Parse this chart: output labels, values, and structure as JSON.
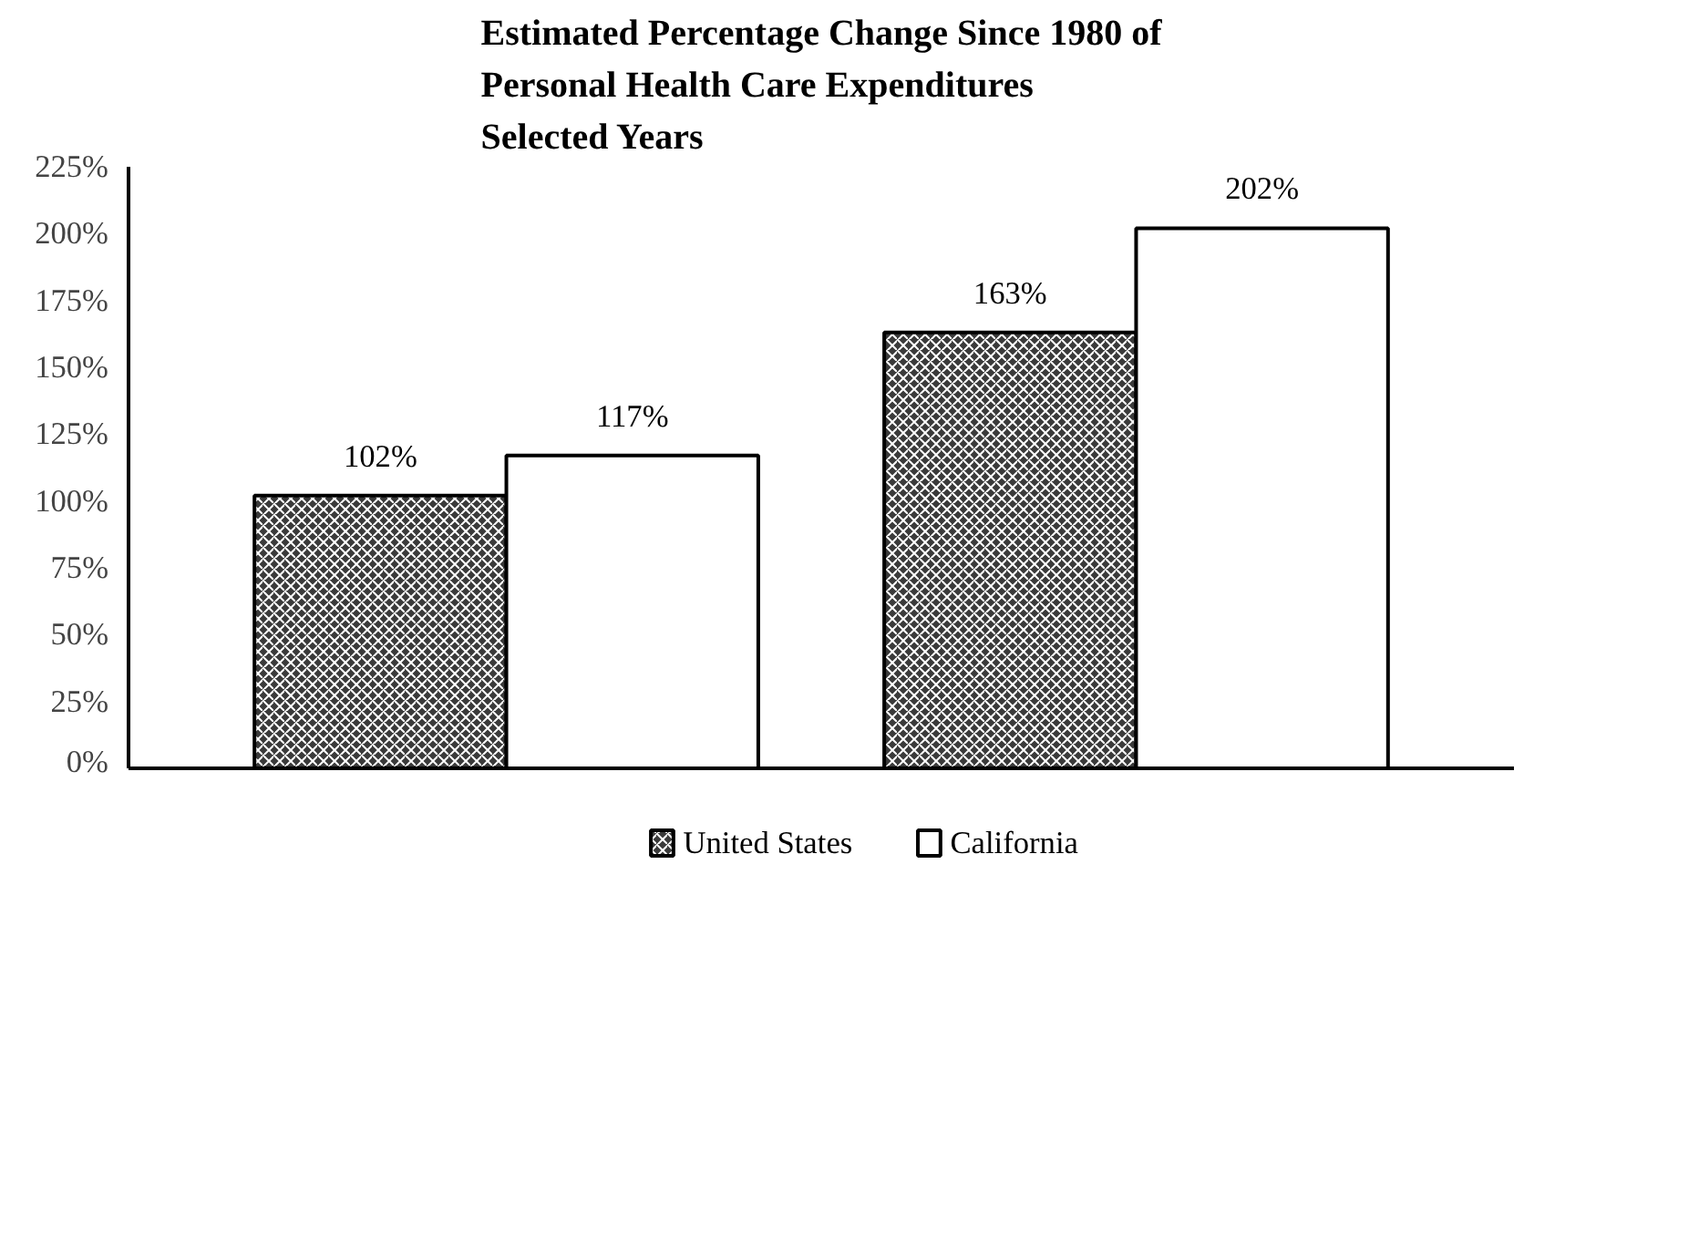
{
  "chart_data": {
    "type": "bar",
    "title": "Estimated Percentage Change Since 1980 of\nPersonal Health Care Expenditures\nSelected Years",
    "categories": [
      null,
      null
    ],
    "series": [
      {
        "name": "United States",
        "color": "#3a3a3a",
        "values": [
          102,
          163
        ],
        "value_labels": [
          "102%",
          "163%"
        ]
      },
      {
        "name": "California",
        "color": "#ffffff",
        "values": [
          117,
          202
        ],
        "value_labels": [
          "117%",
          "202%"
        ]
      }
    ],
    "ylim": [
      0,
      225
    ],
    "yticks": [
      {
        "value": 0,
        "label": "0%"
      },
      {
        "value": 25,
        "label": "25%"
      },
      {
        "value": 50,
        "label": "50%"
      },
      {
        "value": 75,
        "label": "75%"
      },
      {
        "value": 100,
        "label": "100%"
      },
      {
        "value": 125,
        "label": "125%"
      },
      {
        "value": 150,
        "label": "150%"
      },
      {
        "value": 175,
        "label": "175%"
      },
      {
        "value": 200,
        "label": "200%"
      },
      {
        "value": 225,
        "label": "225%"
      }
    ],
    "tick_labels": "y",
    "grid": false,
    "legend": "bottom"
  }
}
